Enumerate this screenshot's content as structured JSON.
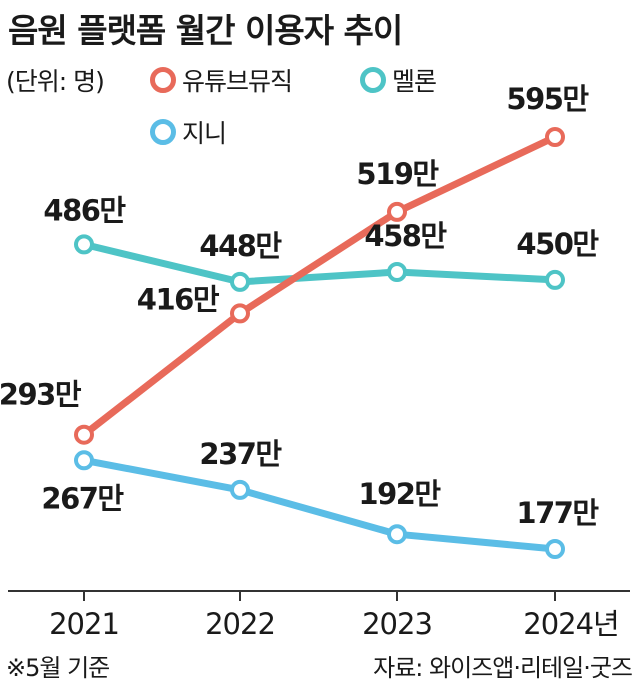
{
  "title": "음원 플랫폼 월간 이용자 추이",
  "unit_label": "(단위: 명)",
  "footnote": "※5월 기준",
  "source": "자료: 와이즈앱·리테일·굿즈",
  "chart_data": {
    "type": "line",
    "title": "음원 플랫폼 월간 이용자 추이",
    "unit": "(단위: 명)",
    "categories": [
      "2021",
      "2022",
      "2023",
      "2024년"
    ],
    "ylim": [
      150,
      620
    ],
    "grid": false,
    "legend_position": "top",
    "series": [
      {
        "name": "유튜브뮤직",
        "color": "#e86a5a",
        "values": [
          293,
          416,
          519,
          595
        ],
        "labels": [
          "293만",
          "416만",
          "519만",
          "595만"
        ]
      },
      {
        "name": "멜론",
        "color": "#4ec4c6",
        "values": [
          486,
          448,
          458,
          450
        ],
        "labels": [
          "486만",
          "448만",
          "458만",
          "450만"
        ]
      },
      {
        "name": "지니",
        "color": "#5bbde6",
        "values": [
          267,
          237,
          192,
          177
        ],
        "labels": [
          "267만",
          "237만",
          "192만",
          "177만"
        ]
      }
    ]
  }
}
